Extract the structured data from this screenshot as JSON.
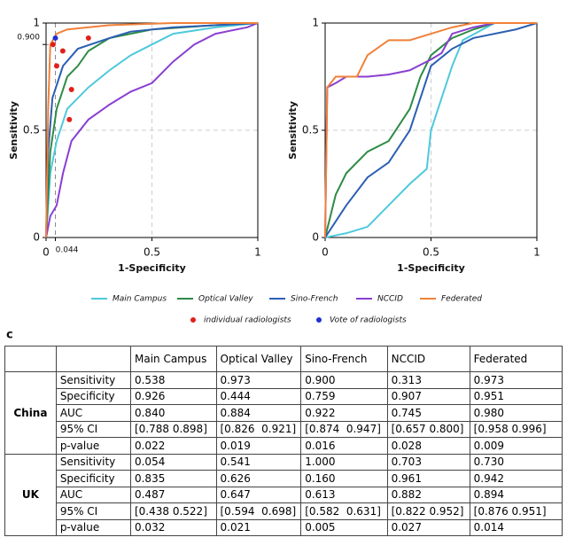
{
  "chart_data": [
    {
      "type": "line",
      "ylabel": "Sensitivity",
      "xlabel": "1-Specificity",
      "xlim": [
        0,
        1
      ],
      "ylim": [
        0,
        1
      ],
      "xticks": [
        0,
        {
          "value": 0.044,
          "label": "0.044"
        },
        0.5,
        1
      ],
      "yticks": [
        0,
        0.5,
        {
          "value": 0.9,
          "label": "0.900"
        },
        1
      ],
      "grid": true,
      "series": [
        {
          "name": "Main Campus",
          "color": "#4ec9dc",
          "x": [
            0,
            0.02,
            0.05,
            0.1,
            0.2,
            0.3,
            0.4,
            0.5,
            0.6,
            0.8,
            1
          ],
          "values": [
            0,
            0.3,
            0.45,
            0.6,
            0.7,
            0.78,
            0.85,
            0.9,
            0.95,
            0.98,
            1
          ]
        },
        {
          "name": "Optical Valley",
          "color": "#2e8b45",
          "x": [
            0,
            0.02,
            0.05,
            0.1,
            0.15,
            0.2,
            0.3,
            0.5,
            0.8,
            1
          ],
          "values": [
            0,
            0.4,
            0.6,
            0.75,
            0.8,
            0.87,
            0.93,
            0.97,
            0.99,
            1
          ]
        },
        {
          "name": "Sino-French",
          "color": "#2b5fb3",
          "x": [
            0,
            0.01,
            0.03,
            0.08,
            0.15,
            0.3,
            0.4,
            0.6,
            1
          ],
          "values": [
            0,
            0.4,
            0.65,
            0.8,
            0.88,
            0.93,
            0.96,
            0.98,
            1
          ]
        },
        {
          "name": "NCCID",
          "color": "#8a3fd1",
          "x": [
            0,
            0.02,
            0.05,
            0.08,
            0.12,
            0.2,
            0.3,
            0.4,
            0.5,
            0.6,
            0.7,
            0.8,
            0.95,
            1
          ],
          "values": [
            0,
            0.1,
            0.15,
            0.3,
            0.45,
            0.55,
            0.62,
            0.68,
            0.72,
            0.82,
            0.9,
            0.95,
            0.98,
            1
          ]
        },
        {
          "name": "Federated",
          "color": "#f0813a",
          "x": [
            0,
            0.01,
            0.02,
            0.05,
            0.1,
            0.3,
            0.6,
            1
          ],
          "values": [
            0,
            0.6,
            0.9,
            0.95,
            0.97,
            0.99,
            1,
            1
          ]
        },
        {
          "name": "individual radiologists",
          "type": "scatter",
          "color": "#e0201b",
          "x": [
            0.033,
            0.079,
            0.2,
            0.05,
            0.12,
            0.11
          ],
          "values": [
            0.9,
            0.87,
            0.93,
            0.8,
            0.69,
            0.55
          ]
        },
        {
          "name": "Vote of radiologists",
          "type": "scatter",
          "color": "#1f2fd6",
          "x": [
            0.044
          ],
          "values": [
            0.93
          ]
        }
      ]
    },
    {
      "type": "line",
      "ylabel": "Sensitivity",
      "xlabel": "1-Specificity",
      "xlim": [
        0,
        1
      ],
      "ylim": [
        0,
        1
      ],
      "xticks": [
        0,
        0.5,
        1
      ],
      "yticks": [
        0,
        0.5,
        1
      ],
      "grid": true,
      "series": [
        {
          "color": "#4ec9dc",
          "x": [
            0,
            0.1,
            0.2,
            0.3,
            0.4,
            0.48,
            0.5,
            0.55,
            0.6,
            0.65,
            0.8,
            1
          ],
          "values": [
            0,
            0.02,
            0.05,
            0.15,
            0.25,
            0.32,
            0.5,
            0.65,
            0.8,
            0.92,
            1,
            1
          ]
        },
        {
          "color": "#2e8b45",
          "x": [
            0,
            0.05,
            0.1,
            0.2,
            0.3,
            0.4,
            0.45,
            0.5,
            0.6,
            0.7,
            0.8,
            1
          ],
          "values": [
            0,
            0.2,
            0.3,
            0.4,
            0.45,
            0.6,
            0.75,
            0.85,
            0.93,
            0.97,
            1,
            1
          ]
        },
        {
          "color": "#2b5fb3",
          "x": [
            0,
            0.1,
            0.2,
            0.3,
            0.4,
            0.45,
            0.5,
            0.6,
            0.7,
            0.9,
            1
          ],
          "values": [
            0,
            0.15,
            0.28,
            0.35,
            0.5,
            0.65,
            0.8,
            0.88,
            0.93,
            0.97,
            1
          ]
        },
        {
          "color": "#8a3fd1",
          "x": [
            0,
            0.01,
            0.05,
            0.1,
            0.2,
            0.3,
            0.4,
            0.5,
            0.55,
            0.6,
            0.7,
            0.8,
            1
          ],
          "values": [
            0,
            0.7,
            0.72,
            0.75,
            0.75,
            0.76,
            0.78,
            0.83,
            0.86,
            0.95,
            0.98,
            1,
            1
          ]
        },
        {
          "color": "#f0813a",
          "x": [
            0,
            0.01,
            0.05,
            0.1,
            0.15,
            0.2,
            0.3,
            0.4,
            0.5,
            0.6,
            0.7,
            1
          ],
          "values": [
            0,
            0.7,
            0.75,
            0.75,
            0.75,
            0.85,
            0.92,
            0.92,
            0.95,
            0.98,
            1,
            1
          ]
        }
      ]
    }
  ],
  "panel_label": "c",
  "table": {
    "columns": [
      "Main Campus",
      "Optical Valley",
      "Sino-French",
      "NCCID",
      "Federated"
    ],
    "groups": [
      {
        "name": "China",
        "rows": [
          {
            "label": "Sensitivity",
            "cells": [
              "0.538",
              "0.973",
              "0.900",
              "0.313",
              "0.973"
            ]
          },
          {
            "label": "Specificity",
            "cells": [
              "0.926",
              "0.444",
              "0.759",
              "0.907",
              "0.951"
            ]
          },
          {
            "label": "AUC",
            "cells": [
              "0.840",
              "0.884",
              "0.922",
              "0.745",
              "0.980"
            ]
          },
          {
            "label": "95% CI",
            "cells": [
              "[0.788 0.898]",
              "[0.826  0.921]",
              "[0.874  0.947]",
              "[0.657 0.800]",
              "[0.958 0.996]"
            ]
          },
          {
            "label": "p-value",
            "cells": [
              "0.022",
              "0.019",
              "0.016",
              "0.028",
              "0.009"
            ]
          }
        ]
      },
      {
        "name": "UK",
        "rows": [
          {
            "label": "Sensitivity",
            "cells": [
              "0.054",
              "0.541",
              "1.000",
              "0.703",
              "0.730"
            ]
          },
          {
            "label": "Specificity",
            "cells": [
              "0.835",
              "0.626",
              "0.160",
              "0.961",
              "0.942"
            ]
          },
          {
            "label": "AUC",
            "cells": [
              "0.487",
              "0.647",
              "0.613",
              "0.882",
              "0.894"
            ]
          },
          {
            "label": "95% CI",
            "cells": [
              "[0.438 0.522]",
              "[0.594  0.698]",
              "[0.582  0.631]",
              "[0.822 0.952]",
              "[0.876 0.951]"
            ]
          },
          {
            "label": "p-value",
            "cells": [
              "0.032",
              "0.021",
              "0.005",
              "0.027",
              "0.014"
            ]
          }
        ]
      }
    ]
  }
}
